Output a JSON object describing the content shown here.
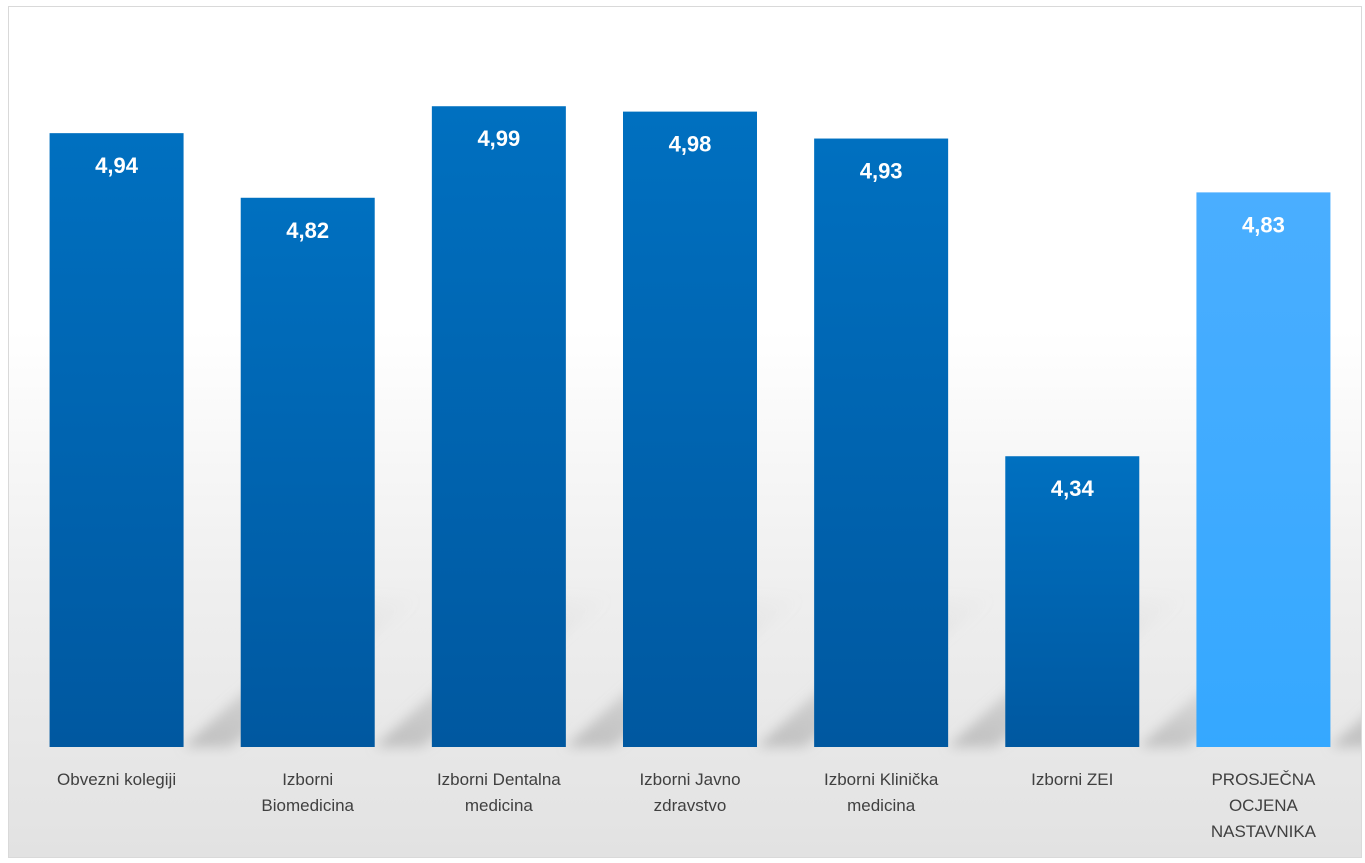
{
  "chart_data": {
    "type": "bar",
    "categories": [
      [
        "Obvezni kolegiji"
      ],
      [
        "Izborni",
        "Biomedicina"
      ],
      [
        "Izborni Dentalna",
        "medicina"
      ],
      [
        "Izborni Javno",
        "zdravstvo"
      ],
      [
        "Izborni Klinička",
        "medicina"
      ],
      [
        "Izborni ZEI"
      ],
      [
        "PROSJEČNA",
        "OCJENA",
        "NASTAVNIKA"
      ]
    ],
    "values": [
      4.94,
      4.82,
      4.99,
      4.98,
      4.93,
      4.34,
      4.83
    ],
    "value_labels": [
      "4,94",
      "4,82",
      "4,99",
      "4,98",
      "4,93",
      "4,34",
      "4,83"
    ],
    "title": "",
    "xlabel": "",
    "ylabel": "",
    "ylim": [
      3.8,
      5.1
    ],
    "grid": false,
    "legend": "none",
    "colors": {
      "bar_dark": "#0058a0",
      "bar_light": "#0070c0",
      "highlight_top": "#4aaeff",
      "highlight_bottom": "#35a8ff",
      "highlight_index": 6
    }
  }
}
